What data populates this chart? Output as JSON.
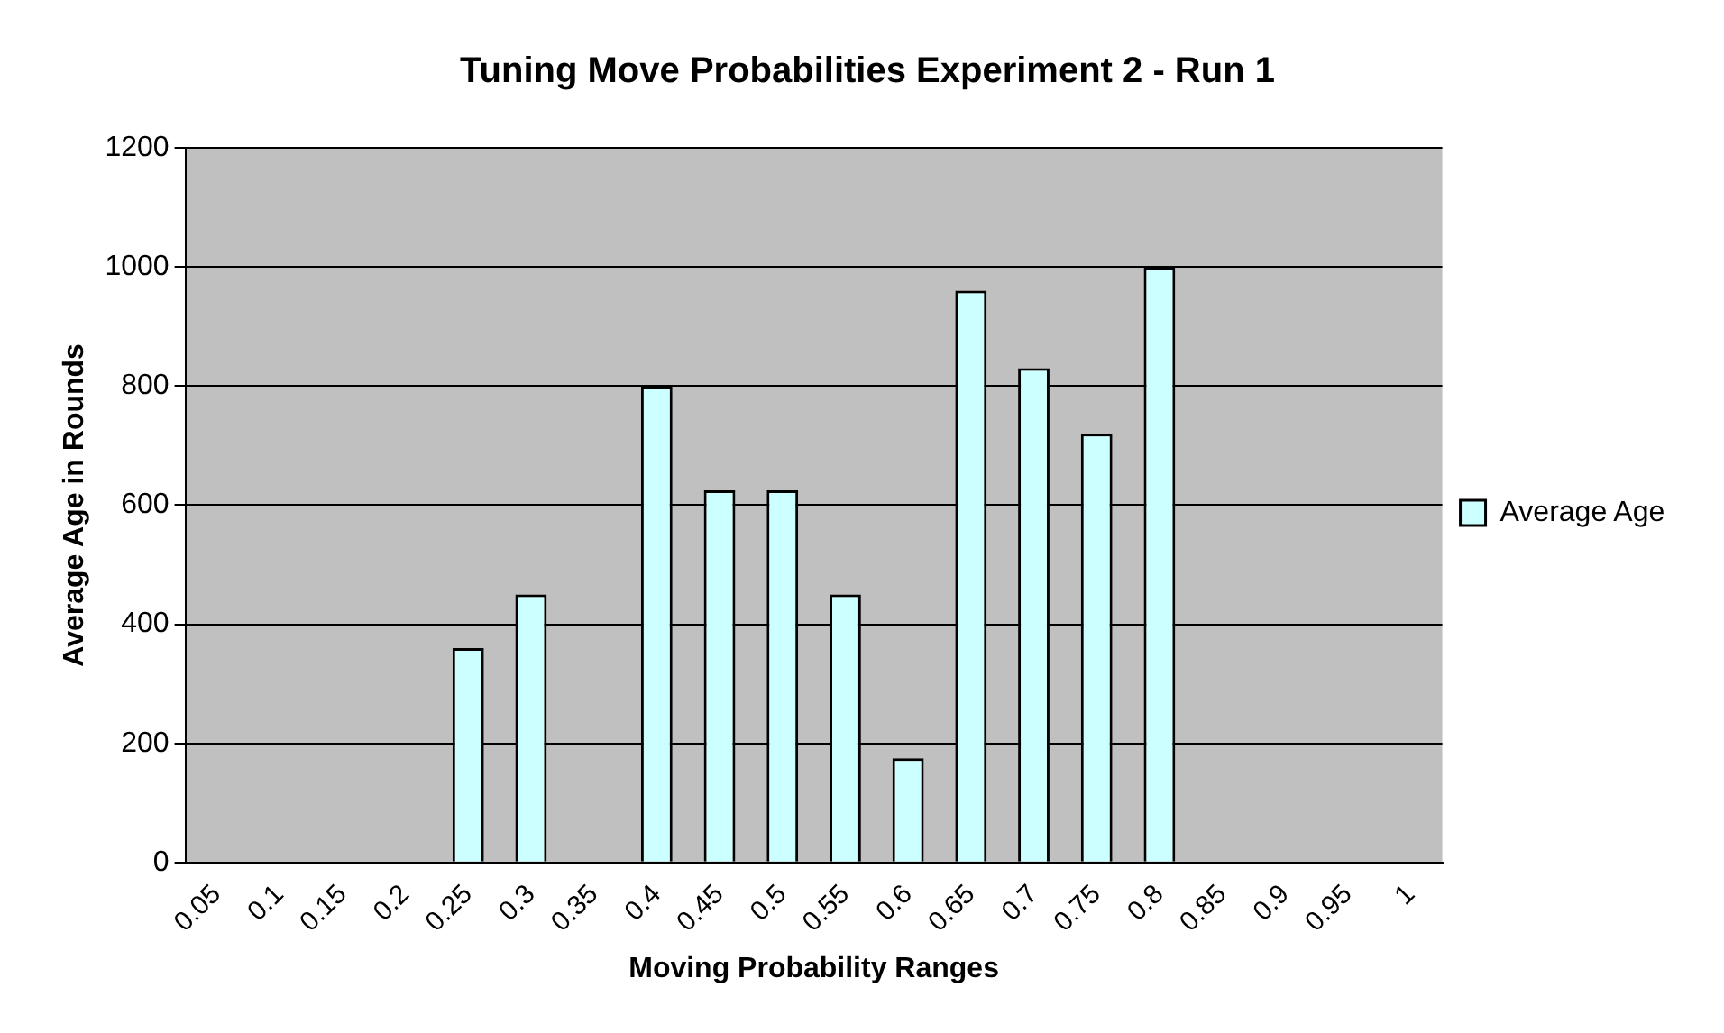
{
  "chart_data": {
    "type": "bar",
    "title": "Tuning Move Probabilities Experiment 2 - Run 1",
    "xlabel": "Moving Probability Ranges",
    "ylabel": "Average Age in Rounds",
    "categories": [
      "0.05",
      "0.1",
      "0.15",
      "0.2",
      "0.25",
      "0.3",
      "0.35",
      "0.4",
      "0.45",
      "0.5",
      "0.55",
      "0.6",
      "0.65",
      "0.7",
      "0.75",
      "0.8",
      "0.85",
      "0.9",
      "0.95",
      "1"
    ],
    "series": [
      {
        "name": "Average Age",
        "color": "#ccffff",
        "values": [
          null,
          null,
          null,
          null,
          360,
          450,
          null,
          800,
          625,
          625,
          450,
          175,
          960,
          830,
          720,
          1000,
          null,
          null,
          null,
          null
        ]
      }
    ],
    "ylim": [
      0,
      1200
    ],
    "yticks": [
      0,
      200,
      400,
      600,
      800,
      1000,
      1200
    ],
    "grid": "y",
    "legend": "right"
  }
}
